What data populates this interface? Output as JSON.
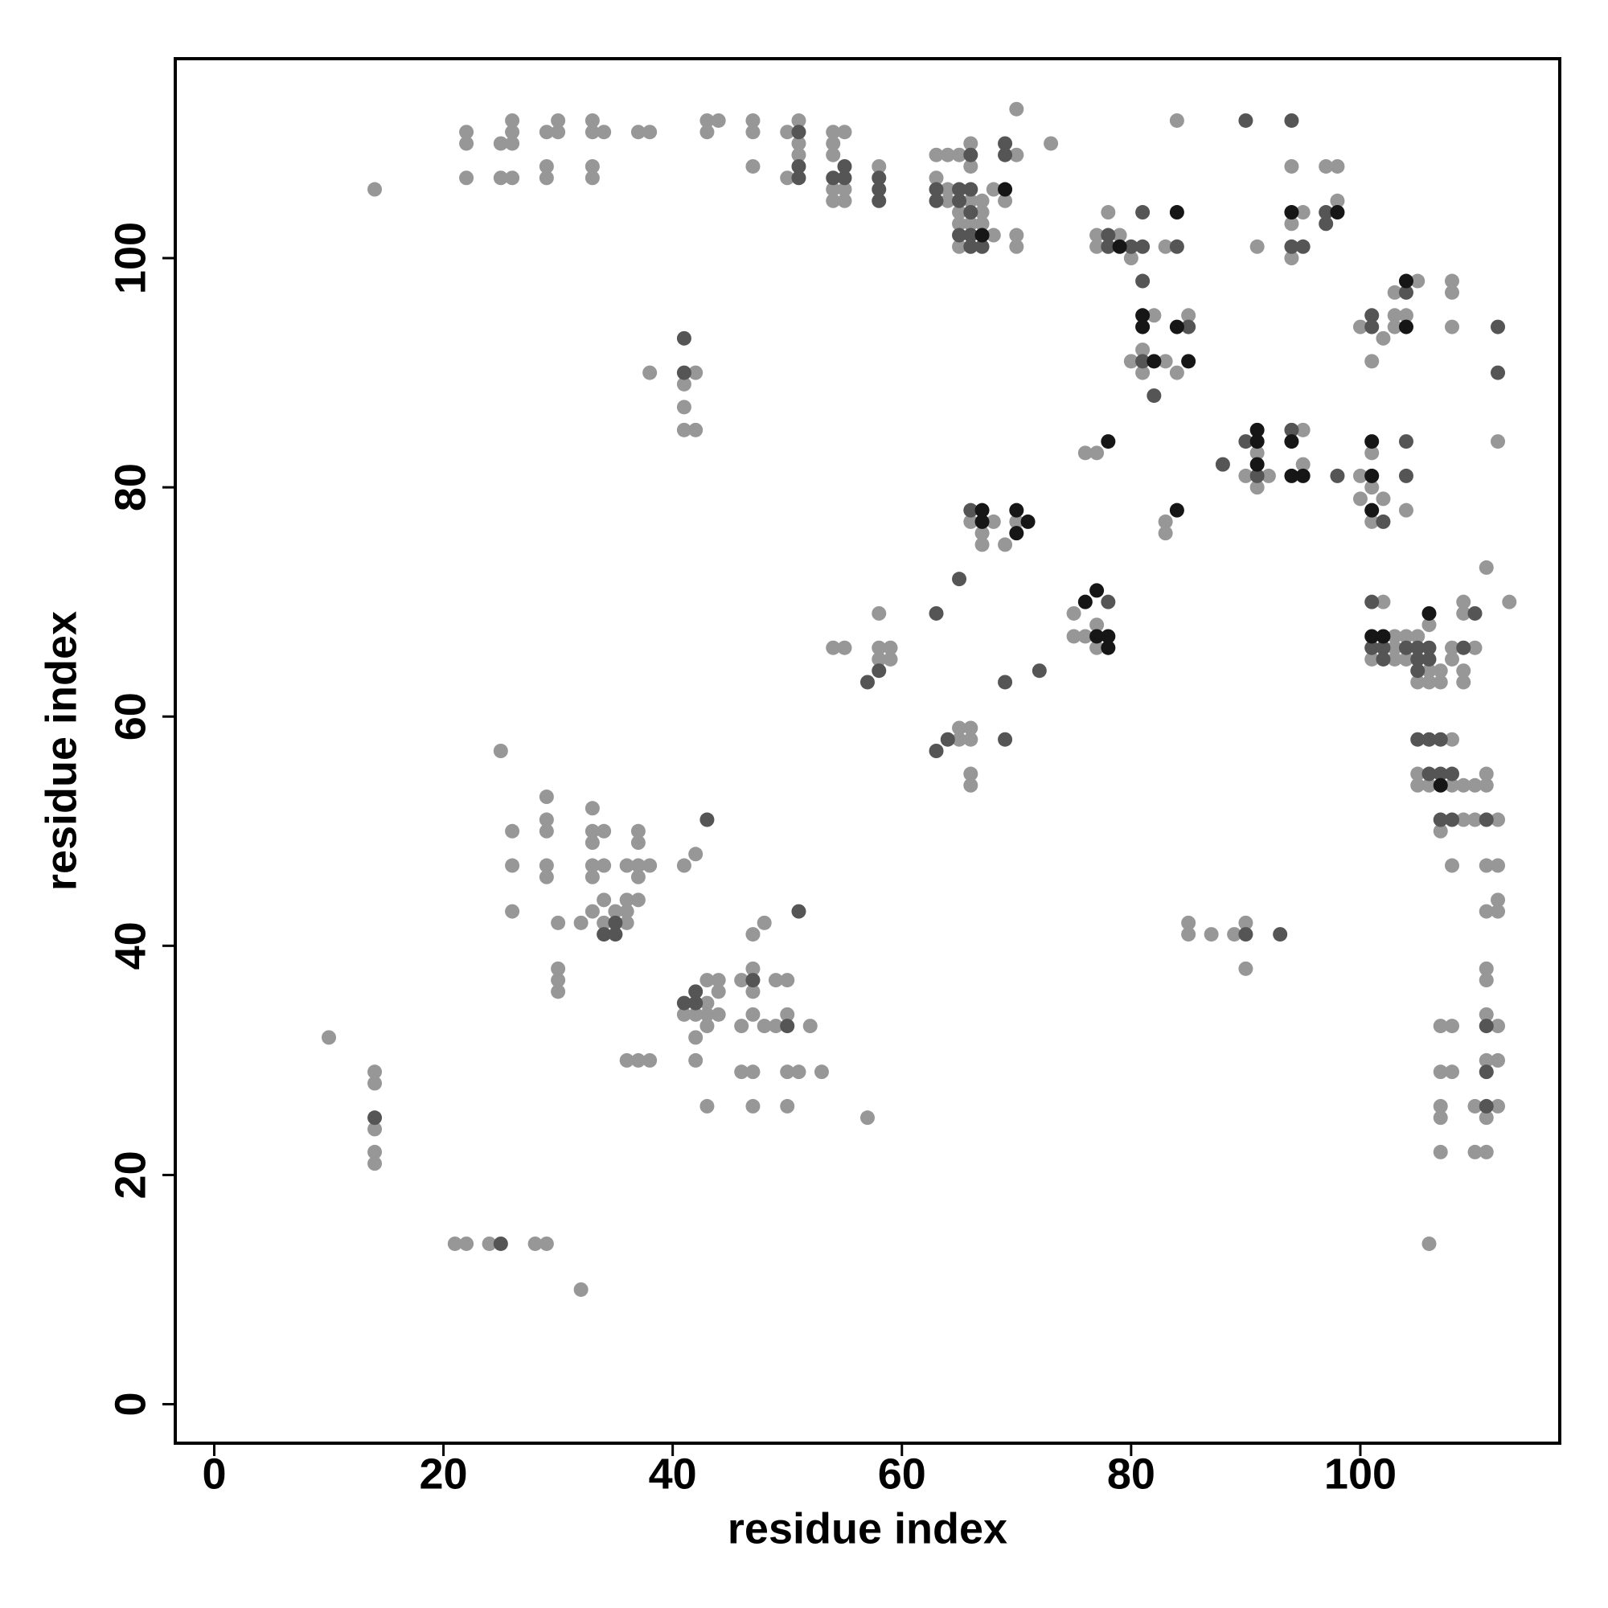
{
  "chart_data": {
    "type": "scatter",
    "xlabel": "residue index",
    "ylabel": "residue index",
    "xlim": [
      -3.4,
      117.4
    ],
    "ylim": [
      -3.4,
      117.4
    ],
    "xticks": [
      0,
      20,
      40,
      60,
      80,
      100
    ],
    "yticks": [
      0,
      20,
      40,
      60,
      80,
      100
    ],
    "grid": false,
    "series": [
      {
        "color": "#979797",
        "x": [
          14,
          22,
          22,
          22,
          25,
          25,
          26,
          26,
          26,
          26,
          29,
          29,
          29,
          30,
          30,
          33,
          33,
          33,
          33,
          34,
          37,
          38,
          43,
          43,
          44,
          47,
          47,
          47,
          50,
          50,
          51,
          51,
          51,
          54,
          54,
          54,
          54,
          54,
          55,
          55,
          55,
          58,
          63,
          63,
          64,
          64,
          64,
          65,
          65,
          65,
          65,
          66,
          66,
          66,
          66,
          67,
          67,
          67,
          68,
          68,
          69,
          70,
          70,
          70,
          70,
          73,
          78,
          77,
          77,
          79,
          80,
          83,
          84,
          91,
          94,
          94,
          94,
          95,
          97,
          98,
          98,
          80,
          81,
          81,
          82,
          83,
          84,
          85,
          100,
          101,
          102,
          103,
          103,
          103,
          104,
          105,
          108,
          108,
          108,
          112,
          41,
          41,
          41,
          42,
          42,
          38,
          76,
          77,
          90,
          91,
          91,
          92,
          95,
          95,
          100,
          100,
          101,
          101,
          101,
          102,
          104,
          83,
          83,
          66,
          67,
          67,
          68,
          69,
          70,
          58,
          58,
          58,
          59,
          59,
          54,
          55,
          77,
          77,
          75,
          75,
          76,
          65,
          65,
          66,
          66,
          66,
          66,
          101,
          102,
          103,
          103,
          103,
          104,
          104,
          105,
          105,
          106,
          106,
          106,
          107,
          107,
          108,
          108,
          109,
          109,
          109,
          110,
          111,
          113,
          109,
          108,
          105,
          105,
          106,
          108,
          109,
          110,
          111,
          111,
          107,
          109,
          110,
          112,
          108,
          111,
          112,
          112,
          111,
          112,
          25,
          26,
          26,
          26,
          29,
          29,
          29,
          29,
          29,
          30,
          30,
          30,
          30,
          32,
          33,
          33,
          33,
          33,
          33,
          33,
          34,
          34,
          34,
          34,
          35,
          36,
          36,
          36,
          36,
          37,
          37,
          37,
          37,
          37,
          38,
          41,
          42,
          36,
          37,
          38,
          41,
          42,
          42,
          42,
          43,
          43,
          43,
          43,
          43,
          44,
          44,
          44,
          46,
          46,
          46,
          47,
          47,
          47,
          47,
          47,
          47,
          48,
          48,
          49,
          49,
          50,
          50,
          50,
          50,
          51,
          52,
          53,
          57,
          10,
          14,
          14,
          14,
          14,
          14,
          21,
          22,
          24,
          28,
          29,
          32,
          85,
          85,
          87,
          89,
          90,
          90,
          106,
          107,
          107,
          107,
          107,
          107,
          108,
          108,
          110,
          110,
          111,
          111,
          111,
          111,
          111,
          111,
          112,
          112,
          112
        ],
        "values": [
          106,
          110,
          111,
          107,
          110,
          107,
          111,
          112,
          110,
          107,
          111,
          108,
          107,
          111,
          112,
          111,
          112,
          108,
          107,
          111,
          111,
          111,
          111,
          112,
          112,
          112,
          111,
          108,
          111,
          107,
          112,
          110,
          109,
          111,
          110,
          109,
          106,
          105,
          111,
          106,
          105,
          108,
          109,
          107,
          109,
          106,
          105,
          109,
          104,
          103,
          101,
          110,
          108,
          105,
          103,
          105,
          104,
          103,
          106,
          102,
          105,
          109,
          102,
          101,
          113,
          110,
          104,
          102,
          101,
          102,
          100,
          101,
          112,
          101,
          108,
          103,
          100,
          104,
          108,
          108,
          105,
          91,
          92,
          90,
          95,
          91,
          90,
          95,
          94,
          91,
          93,
          97,
          95,
          94,
          95,
          98,
          98,
          97,
          94,
          84,
          89,
          87,
          85,
          90,
          85,
          90,
          83,
          83,
          81,
          83,
          80,
          81,
          85,
          82,
          81,
          79,
          83,
          80,
          77,
          79,
          78,
          77,
          76,
          77,
          76,
          75,
          77,
          75,
          77,
          69,
          66,
          65,
          66,
          65,
          66,
          66,
          68,
          66,
          69,
          67,
          67,
          59,
          58,
          59,
          58,
          55,
          54,
          65,
          70,
          67,
          66,
          65,
          67,
          65,
          67,
          63,
          68,
          64,
          63,
          64,
          63,
          66,
          65,
          69,
          64,
          63,
          66,
          73,
          70,
          70,
          58,
          55,
          54,
          54,
          54,
          54,
          54,
          55,
          54,
          50,
          51,
          51,
          51,
          47,
          47,
          47,
          44,
          43,
          43,
          57,
          50,
          47,
          43,
          53,
          51,
          50,
          47,
          46,
          42,
          38,
          37,
          36,
          42,
          52,
          50,
          49,
          47,
          46,
          43,
          50,
          47,
          44,
          42,
          43,
          47,
          44,
          43,
          42,
          50,
          49,
          47,
          46,
          44,
          47,
          47,
          48,
          30,
          30,
          30,
          34,
          34,
          32,
          30,
          37,
          35,
          34,
          33,
          26,
          37,
          36,
          34,
          37,
          33,
          29,
          41,
          38,
          36,
          34,
          29,
          26,
          42,
          33,
          37,
          33,
          37,
          34,
          29,
          26,
          29,
          33,
          29,
          25,
          32,
          29,
          28,
          24,
          22,
          21,
          14,
          14,
          14,
          14,
          14,
          10,
          42,
          41,
          41,
          41,
          42,
          38,
          14,
          33,
          29,
          26,
          25,
          22,
          33,
          29,
          26,
          22,
          38,
          37,
          34,
          30,
          25,
          22,
          33,
          30,
          26
        ]
      },
      {
        "color": "#555555",
        "x": [
          51,
          51,
          51,
          54,
          55,
          55,
          58,
          58,
          58,
          63,
          63,
          65,
          65,
          65,
          66,
          66,
          66,
          66,
          66,
          67,
          69,
          69,
          78,
          78,
          80,
          81,
          81,
          84,
          90,
          94,
          94,
          95,
          97,
          97,
          81,
          81,
          82,
          85,
          101,
          101,
          104,
          112,
          112,
          41,
          41,
          88,
          90,
          91,
          94,
          98,
          102,
          104,
          104,
          66,
          65,
          63,
          58,
          57,
          78,
          72,
          69,
          63,
          64,
          69,
          101,
          101,
          102,
          102,
          104,
          105,
          105,
          105,
          106,
          106,
          109,
          110,
          105,
          106,
          107,
          106,
          107,
          108,
          107,
          108,
          111,
          34,
          35,
          35,
          43,
          41,
          42,
          42,
          47,
          50,
          51,
          14,
          25,
          90,
          93,
          111,
          111,
          111
        ],
        "values": [
          111,
          108,
          107,
          107,
          108,
          107,
          107,
          106,
          105,
          106,
          105,
          106,
          105,
          102,
          109,
          106,
          104,
          102,
          101,
          101,
          110,
          109,
          102,
          101,
          101,
          104,
          101,
          101,
          112,
          112,
          101,
          101,
          104,
          103,
          98,
          91,
          88,
          94,
          95,
          94,
          97,
          94,
          90,
          93,
          90,
          82,
          84,
          81,
          85,
          81,
          77,
          84,
          81,
          78,
          72,
          69,
          64,
          63,
          70,
          64,
          63,
          57,
          58,
          58,
          70,
          66,
          66,
          65,
          66,
          66,
          65,
          64,
          66,
          65,
          66,
          69,
          58,
          58,
          58,
          55,
          55,
          55,
          51,
          51,
          51,
          41,
          42,
          41,
          51,
          35,
          36,
          35,
          37,
          33,
          43,
          25,
          14,
          41,
          41,
          33,
          29,
          26
        ]
      },
      {
        "color": "#161616",
        "x": [
          67,
          69,
          79,
          84,
          94,
          98,
          81,
          81,
          82,
          84,
          85,
          104,
          104,
          78,
          91,
          91,
          91,
          94,
          94,
          95,
          101,
          101,
          101,
          84,
          67,
          67,
          70,
          70,
          71,
          76,
          77,
          77,
          78,
          78,
          101,
          102,
          106,
          107
        ],
        "values": [
          102,
          106,
          101,
          104,
          104,
          104,
          95,
          94,
          91,
          94,
          91,
          98,
          94,
          84,
          85,
          84,
          82,
          84,
          81,
          81,
          84,
          81,
          78,
          78,
          78,
          77,
          78,
          76,
          77,
          70,
          71,
          67,
          67,
          66,
          67,
          67,
          69,
          54
        ]
      }
    ]
  }
}
